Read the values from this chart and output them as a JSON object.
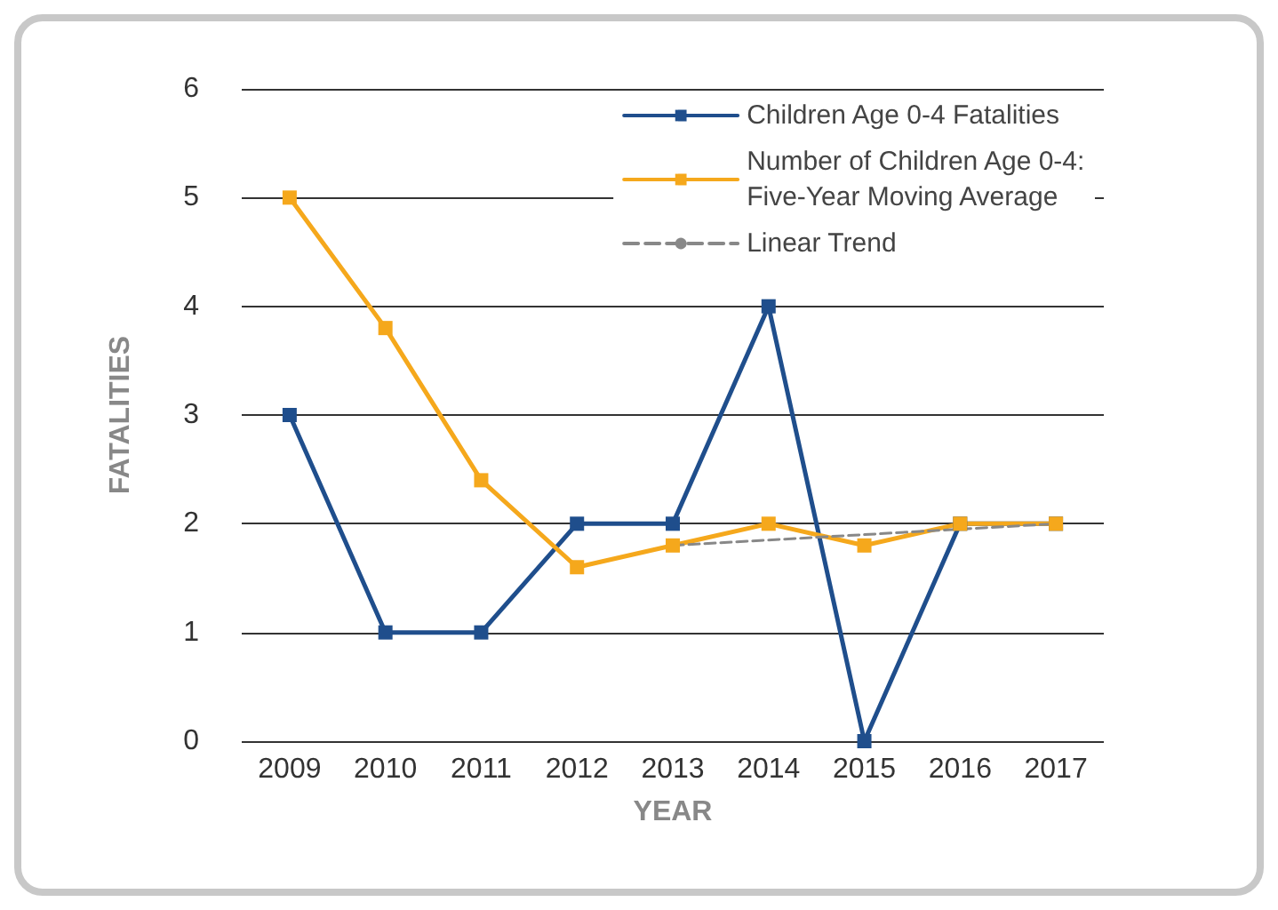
{
  "chart_data": {
    "type": "line",
    "xlabel": "YEAR",
    "ylabel": "FATALITIES",
    "categories": [
      "2009",
      "2010",
      "2011",
      "2012",
      "2013",
      "2014",
      "2015",
      "2016",
      "2017"
    ],
    "series": [
      {
        "name": "Children Age 0-4 Fatalities",
        "color": "#1f4e8c",
        "marker": "square",
        "values": [
          3,
          1,
          1,
          2,
          2,
          4,
          0,
          2,
          2
        ]
      },
      {
        "name": "Number of Children Age 0-4:\nFive-Year Moving Average",
        "color": "#f5a81c",
        "marker": "square",
        "values": [
          5,
          3.8,
          2.4,
          1.6,
          1.8,
          2,
          1.8,
          2,
          2
        ]
      },
      {
        "name": "Linear Trend",
        "color": "#888888",
        "marker": "none",
        "line_style": "dashed",
        "values": [
          null,
          null,
          null,
          null,
          1.8,
          null,
          null,
          null,
          2.0
        ]
      }
    ],
    "ylim": [
      0,
      6
    ],
    "yticks": [
      0,
      1,
      2,
      3,
      4,
      5,
      6
    ],
    "grid": "y",
    "legend": "top right"
  }
}
